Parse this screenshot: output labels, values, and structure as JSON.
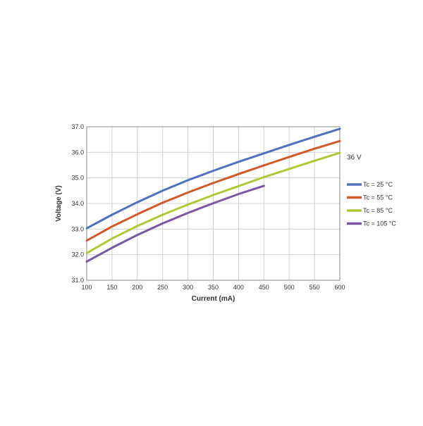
{
  "chart_data": {
    "type": "line",
    "title": "",
    "xlabel": "Current (mA)",
    "ylabel": "Voltage (V)",
    "xlim": [
      100,
      600
    ],
    "ylim": [
      31.0,
      37.0
    ],
    "x_ticks": [
      "100",
      "150",
      "200",
      "250",
      "300",
      "350",
      "400",
      "450",
      "500",
      "550",
      "600"
    ],
    "y_ticks": [
      "31.0",
      "32.0",
      "33.0",
      "34.0",
      "35.0",
      "36.0",
      "37.0"
    ],
    "grid": true,
    "legend_position": "right",
    "annotation": {
      "text": "36 V",
      "y": 36.0
    },
    "series": [
      {
        "name": "Tc = 25 °C",
        "color": "#4f72bf",
        "x": [
          100,
          150,
          200,
          250,
          300,
          350,
          400,
          450,
          500,
          550,
          600
        ],
        "y": [
          33.03,
          33.56,
          34.05,
          34.5,
          34.91,
          35.28,
          35.63,
          35.96,
          36.29,
          36.61,
          36.92
        ]
      },
      {
        "name": "Tc = 55 °C",
        "color": "#d05a2a",
        "x": [
          100,
          150,
          200,
          250,
          300,
          350,
          400,
          450,
          500,
          550,
          600
        ],
        "y": [
          32.55,
          33.1,
          33.58,
          34.03,
          34.43,
          34.8,
          35.15,
          35.49,
          35.82,
          36.14,
          36.44
        ]
      },
      {
        "name": "Tc = 85 °C",
        "color": "#afc936",
        "x": [
          100,
          150,
          200,
          250,
          300,
          350,
          400,
          450,
          500,
          550,
          600
        ],
        "y": [
          32.06,
          32.63,
          33.12,
          33.56,
          33.96,
          34.33,
          34.68,
          35.03,
          35.35,
          35.67,
          35.98
        ]
      },
      {
        "name": "Tc = 105 °C",
        "color": "#7d55a6",
        "x": [
          100,
          150,
          200,
          250,
          300,
          350,
          400,
          450
        ],
        "y": [
          31.73,
          32.27,
          32.77,
          33.22,
          33.63,
          34.01,
          34.37,
          34.69
        ]
      }
    ]
  }
}
